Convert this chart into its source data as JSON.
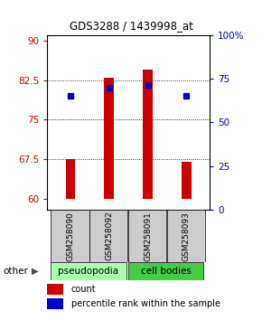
{
  "title": "GDS3288 / 1439998_at",
  "samples": [
    "GSM258090",
    "GSM258092",
    "GSM258091",
    "GSM258093"
  ],
  "groups": [
    "pseudopodia",
    "pseudopodia",
    "cell bodies",
    "cell bodies"
  ],
  "bar_bottoms": [
    60,
    60,
    60,
    60
  ],
  "bar_tops": [
    67.5,
    83.0,
    84.5,
    67.0
  ],
  "percentile_values": [
    79.5,
    81.0,
    81.5,
    79.5
  ],
  "ylim_left": [
    58,
    91
  ],
  "ylim_right": [
    0,
    100
  ],
  "yticks_left": [
    60,
    67.5,
    75,
    82.5,
    90
  ],
  "yticks_right": [
    0,
    25,
    50,
    75,
    100
  ],
  "ytick_labels_right": [
    "0",
    "25",
    "50",
    "75",
    "100%"
  ],
  "bar_color": "#cc0000",
  "dot_color": "#0000cc",
  "group_colors": {
    "pseudopodia": "#aaffaa",
    "cell bodies": "#44cc44"
  },
  "left_tick_color": "#cc0000",
  "right_tick_color": "#0000cc",
  "sample_label_area_color": "#cccccc",
  "other_label": "other",
  "legend_count_label": "count",
  "legend_pct_label": "percentile rank within the sample",
  "bar_width": 0.25,
  "dot_size": 5
}
